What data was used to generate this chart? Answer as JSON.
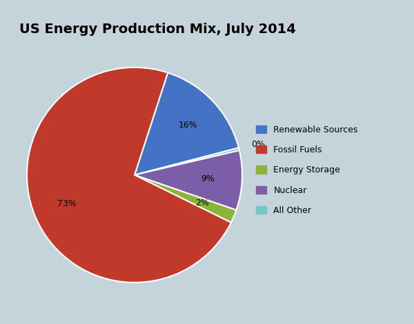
{
  "title": "US Energy Production Mix, July 2014",
  "plot_order_labels": [
    "Renewable Sources",
    "All Other",
    "Nuclear",
    "Energy Storage",
    "Fossil Fuels"
  ],
  "plot_order_values": [
    16,
    0.4,
    9,
    2,
    73
  ],
  "plot_order_colors": [
    "#4472C4",
    "#70C8C8",
    "#7B5EA7",
    "#8DB33B",
    "#C0392B"
  ],
  "legend_labels": [
    "Renewable Sources",
    "Fossil Fuels",
    "Energy Storage",
    "Nuclear",
    "All Other"
  ],
  "legend_colors": [
    "#4472C4",
    "#C0392B",
    "#8DB33B",
    "#7B5EA7",
    "#70C8C8"
  ],
  "pct_display": [
    "16%",
    "0%",
    "9%",
    "2%",
    "73%"
  ],
  "background_color": "#C5D3DB",
  "chart_bg": "#FFFFFF",
  "title_fontsize": 14,
  "legend_fontsize": 9,
  "startangle": 72
}
